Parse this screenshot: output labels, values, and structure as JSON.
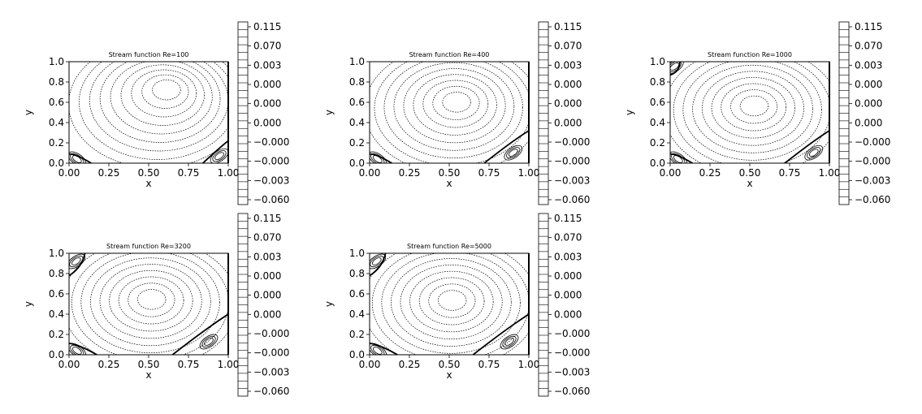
{
  "chart_data": [
    {
      "type": "contour",
      "title": "Stream function Re=100",
      "xlabel": "x",
      "ylabel": "y",
      "xlim": [
        0,
        1
      ],
      "ylim": [
        0,
        1
      ],
      "xticks": [
        "0.00",
        "0.25",
        "0.50",
        "0.75",
        "1.00"
      ],
      "yticks": [
        "0.0",
        "0.2",
        "0.4",
        "0.6",
        "0.8",
        "1.0"
      ],
      "colorbar": {
        "ticks": [
          "0.115",
          "0.070",
          "0.003",
          "0.000",
          "0.000",
          "0.000",
          "−0.000",
          "−0.000",
          "−0.003",
          "−0.060"
        ]
      },
      "vortex_center": [
        0.62,
        0.74
      ],
      "ring_count": 9,
      "corner_eddies": [
        "bottom-left",
        "bottom-right"
      ],
      "line_color": "#000000"
    },
    {
      "type": "contour",
      "title": "Stream function Re=400",
      "xlabel": "x",
      "ylabel": "y",
      "xlim": [
        0,
        1
      ],
      "ylim": [
        0,
        1
      ],
      "xticks": [
        "0.00",
        "0.25",
        "0.50",
        "0.75",
        "1.00"
      ],
      "yticks": [
        "0.0",
        "0.2",
        "0.4",
        "0.6",
        "0.8",
        "1.0"
      ],
      "colorbar": {
        "ticks": [
          "0.115",
          "0.070",
          "0.003",
          "0.000",
          "0.000",
          "0.000",
          "−0.000",
          "−0.000",
          "−0.003",
          "−0.060"
        ]
      },
      "vortex_center": [
        0.55,
        0.61
      ],
      "ring_count": 9,
      "corner_eddies": [
        "bottom-left",
        "bottom-right"
      ],
      "line_color": "#000000"
    },
    {
      "type": "contour",
      "title": "Stream function Re=1000",
      "xlabel": "x",
      "ylabel": "y",
      "xlim": [
        0,
        1
      ],
      "ylim": [
        0,
        1
      ],
      "xticks": [
        "0.00",
        "0.25",
        "0.50",
        "0.75",
        "1.00"
      ],
      "yticks": [
        "0.0",
        "0.2",
        "0.4",
        "0.6",
        "0.8",
        "1.0"
      ],
      "colorbar": {
        "ticks": [
          "0.115",
          "0.070",
          "0.003",
          "0.000",
          "0.000",
          "0.000",
          "−0.000",
          "−0.000",
          "−0.003",
          "−0.060"
        ]
      },
      "vortex_center": [
        0.53,
        0.57
      ],
      "ring_count": 9,
      "corner_eddies": [
        "bottom-left",
        "bottom-right",
        "top-left"
      ],
      "line_color": "#000000"
    },
    {
      "type": "contour",
      "title": "Stream function Re=3200",
      "xlabel": "x",
      "ylabel": "y",
      "xlim": [
        0,
        1
      ],
      "ylim": [
        0,
        1
      ],
      "xticks": [
        "0.00",
        "0.25",
        "0.50",
        "0.75",
        "1.00"
      ],
      "yticks": [
        "0.0",
        "0.2",
        "0.4",
        "0.6",
        "0.8",
        "1.0"
      ],
      "colorbar": {
        "ticks": [
          "0.115",
          "0.070",
          "0.003",
          "0.000",
          "0.000",
          "0.000",
          "−0.000",
          "−0.000",
          "−0.003",
          "−0.060"
        ]
      },
      "vortex_center": [
        0.52,
        0.55
      ],
      "ring_count": 9,
      "corner_eddies": [
        "bottom-left",
        "bottom-right",
        "top-left"
      ],
      "line_color": "#000000"
    },
    {
      "type": "contour",
      "title": "Stream function Re=5000",
      "xlabel": "x",
      "ylabel": "y",
      "xlim": [
        0,
        1
      ],
      "ylim": [
        0,
        1
      ],
      "xticks": [
        "0.00",
        "0.25",
        "0.50",
        "0.75",
        "1.00"
      ],
      "yticks": [
        "0.0",
        "0.2",
        "0.4",
        "0.6",
        "0.8",
        "1.0"
      ],
      "colorbar": {
        "ticks": [
          "0.115",
          "0.070",
          "0.003",
          "0.000",
          "0.000",
          "0.000",
          "−0.000",
          "−0.000",
          "−0.003",
          "−0.060"
        ]
      },
      "vortex_center": [
        0.52,
        0.54
      ],
      "ring_count": 9,
      "corner_eddies": [
        "bottom-left",
        "bottom-right",
        "top-left"
      ],
      "line_color": "#000000"
    }
  ]
}
